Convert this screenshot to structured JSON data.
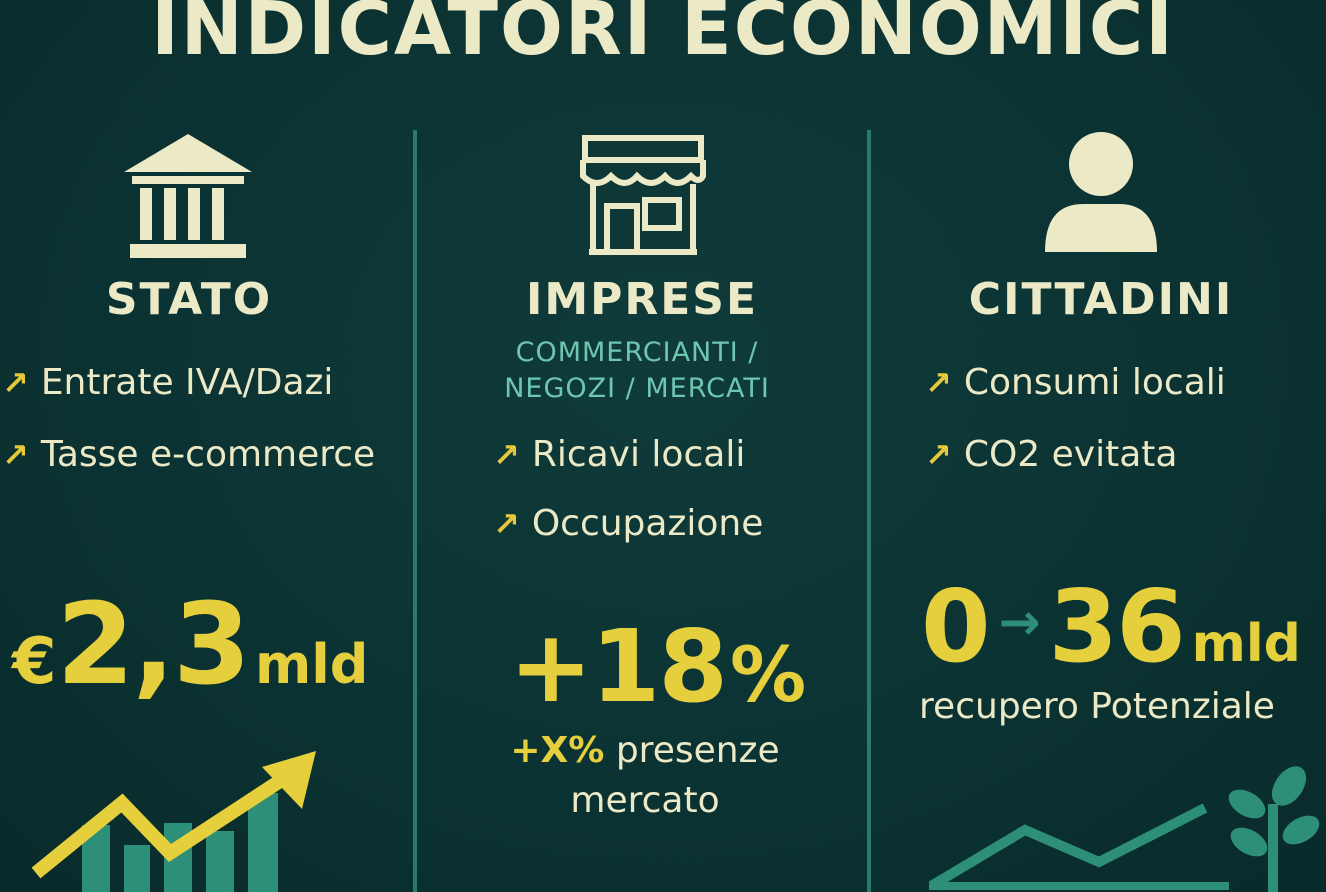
{
  "title": "INDICATORI ECONOMICI",
  "colors": {
    "background": "#0b3232",
    "accent_yellow": "#e6cf3c",
    "cream": "#ece9c6",
    "teal": "#2e8f78",
    "sub_teal": "#6fc6b0"
  },
  "columns": [
    {
      "heading": "STATO",
      "icon": "bank-icon",
      "items": [
        {
          "arrow": "↗",
          "label": "Entrate IVA/Dazi"
        },
        {
          "arrow": "↗",
          "label": "Tasse e-commerce"
        }
      ],
      "figure": {
        "currency": "€",
        "value": "2,3",
        "unit": "mld"
      },
      "illustration": "growth-chart-icon"
    },
    {
      "heading": "IMPRESE",
      "subheading_line1": "COMMERCIANTI /",
      "subheading_line2": "NEGOZI / MERCATI",
      "icon": "shop-icon",
      "items": [
        {
          "arrow": "↗",
          "label": "Ricavi locali"
        },
        {
          "arrow": "↗",
          "label": "Occupazione"
        }
      ],
      "figure": {
        "value": "+18",
        "unit": "%"
      },
      "caption_accent": "+X%",
      "caption_rest": " presenze",
      "caption_line2": "mercato"
    },
    {
      "heading": "CITTADINI",
      "icon": "person-icon",
      "items": [
        {
          "arrow": "↗",
          "label": "Consumi locali"
        },
        {
          "arrow": "↗",
          "label": "CO2 evitata"
        }
      ],
      "figure": {
        "from": "0",
        "arrow": "→",
        "to": "36",
        "unit": "mld"
      },
      "caption": "recupero Potenziale",
      "illustration": "plant-icon"
    }
  ]
}
